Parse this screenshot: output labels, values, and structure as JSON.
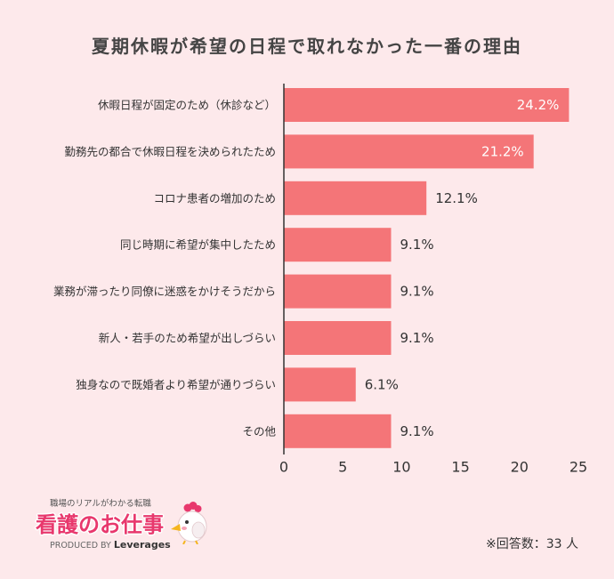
{
  "chart_data": {
    "type": "bar",
    "orientation": "horizontal",
    "title": "夏期休暇が希望の日程で取れなかった一番の理由",
    "categories": [
      "休暇日程が固定のため（休診など）",
      "勤務先の都合で休暇日程を決められたため",
      "コロナ患者の増加のため",
      "同じ時期に希望が集中したため",
      "業務が滞ったり同僚に迷惑をかけそうだから",
      "新人・若手のため希望が出しづらい",
      "独身なので既婚者より希望が通りづらい",
      "その他"
    ],
    "values": [
      24.2,
      21.2,
      12.1,
      9.1,
      9.1,
      9.1,
      6.1,
      9.1
    ],
    "data_labels": [
      "24.2%",
      "21.2%",
      "12.1%",
      "9.1%",
      "9.1%",
      "9.1%",
      "6.1%",
      "9.1%"
    ],
    "xlim": [
      0,
      25
    ],
    "xticks": [
      "0",
      "5",
      "10",
      "15",
      "20",
      "25"
    ],
    "xlabel": "",
    "ylabel": "",
    "grid": false,
    "legend": "none"
  },
  "logo": {
    "tagline": "職場のリアルがわかる転職",
    "name": "看護のお仕事",
    "produced_by": "PRODUCED BY",
    "brand": "Leverages",
    "mascot_icon": "bird-mascot-icon"
  },
  "footnote": "※回答数：33 人",
  "colors": {
    "background": "#fde9eb",
    "bar": "#f47578",
    "text": "#333333",
    "inside_label": "#ffffff",
    "axis": "#333333",
    "brand": "#e8386d"
  }
}
